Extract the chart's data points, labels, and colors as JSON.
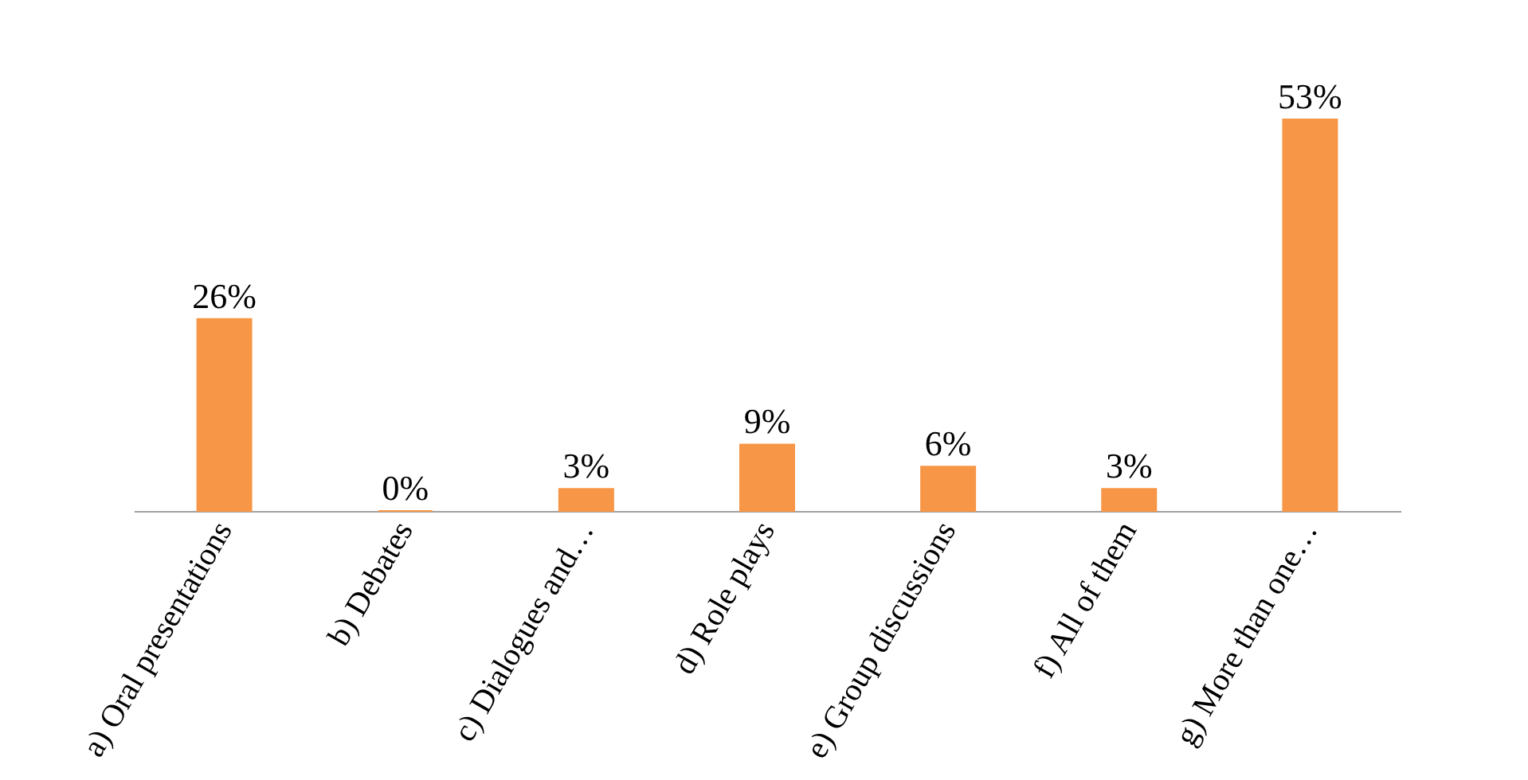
{
  "chart_data": {
    "type": "bar",
    "categories": [
      "a) Oral presentations",
      "b) Debates",
      "c) Dialogues and…",
      "d) Role plays",
      "e) Group discussions",
      "f) All of them",
      "g) More than one…"
    ],
    "values": [
      26,
      0,
      3,
      9,
      6,
      3,
      53
    ],
    "value_labels": [
      "26%",
      "0%",
      "3%",
      "9%",
      "6%",
      "3%",
      "53%"
    ],
    "color": "#f79646",
    "grid": false
  }
}
